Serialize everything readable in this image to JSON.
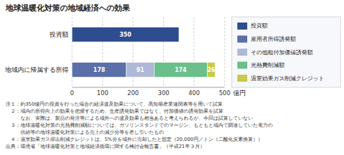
{
  "chart_data": {
    "type": "bar",
    "orientation": "horizontal",
    "stacked": true,
    "title": "地球温暖化対策の地域経済への効果",
    "xlabel": "億円",
    "categories": [
      "投資額",
      "地域内に帰属する所得"
    ],
    "series": [
      {
        "name": "投資額",
        "color": "#2e4d8f",
        "values": [
          350,
          null
        ]
      },
      {
        "name": "雇用者所得誘発額",
        "color": "#5b6fa8",
        "values": [
          null,
          178
        ]
      },
      {
        "name": "その他粗付加価値誘発額",
        "color": "#b0b8d8",
        "values": [
          null,
          91
        ]
      },
      {
        "name": "光熱費削減額",
        "color": "#6abf8a",
        "values": [
          null,
          174
        ]
      },
      {
        "name": "温室効果ガス削減クレジット",
        "color": "#c8c84a",
        "values": [
          null,
          26
        ]
      }
    ],
    "xlim": [
      0,
      500
    ],
    "xticks": [
      0,
      100,
      200,
      300,
      400,
      500
    ],
    "grid": true,
    "legend": "right",
    "data_labels": true,
    "annotations": [
      "注１：約350億円の投資を行った場合の経済波及効果について、高知県産業連関表等を用いて試算",
      "　２：域内の所得向上の効果を把握するため、生産誘発効果ではなく、付加価値の誘発効果を試算",
      "　　　なお、実際は、製品の発注等による域外への波及効果も相当あると考えられるが、今回は試算していない",
      "　３：地球温暖化対策の光熱費削減額については、ガソリンスタンドでのマージン、もともと域内で調達していた電力の",
      "　　　供給等の地球温暖化対策による売上の減少分等を差し引いたもの",
      "　４：温室効果ガス排出削減クレジットは、5%分を域外に売却したと想定（20,000円／トン（二酸化炭素換算））",
      "出典：環境省「地球温暖化対策と地域経済循環に関する検討会報告書」（平成21年３月）"
    ]
  }
}
